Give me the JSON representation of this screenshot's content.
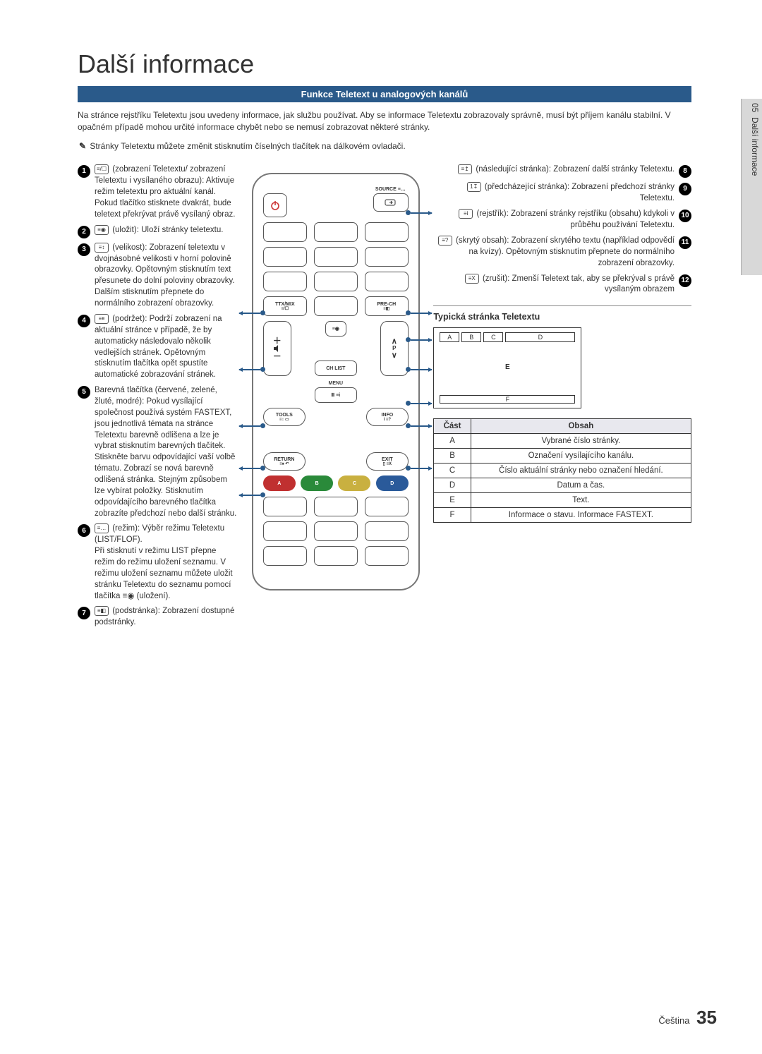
{
  "side_tab": {
    "chapter_num": "05",
    "chapter_title": "Další informace"
  },
  "page_title": "Další informace",
  "section_bar": "Funkce Teletext u analogových kanálů",
  "intro": "Na stránce rejstříku Teletextu jsou uvedeny informace, jak službu používat. Aby se informace Teletextu zobrazovaly správně, musí být příjem kanálu stabilní. V opačném případě mohou určité informace chybět nebo se nemusí zobrazovat některé stránky.",
  "note_icon": "✎",
  "note": "Stránky Teletextu můžete změnit stisknutím číselných tlačítek na dálkovém ovladači.",
  "left_items": [
    {
      "n": "1",
      "sym": "≡/☐",
      "text": "(zobrazení Teletextu/ zobrazení Teletextu i vysílaného obrazu): Aktivuje režim teletextu pro aktuální kanál. Pokud tlačítko stisknete dvakrát, bude teletext překrývat právě vysílaný obraz."
    },
    {
      "n": "2",
      "sym": "≡◉",
      "text": "(uložit): Uloží stránky teletextu."
    },
    {
      "n": "3",
      "sym": "≡↕",
      "text": "(velikost): Zobrazení teletextu v dvojnásobné velikosti v horní polovině obrazovky. Opětovným stisknutím text přesunete do dolní poloviny obrazovky. Dalším stisknutím přepnete do normálního zobrazení obrazovky."
    },
    {
      "n": "4",
      "sym": "≡⏸",
      "text": "(podržet): Podrží zobrazení na aktuální stránce v případě, že by automaticky následovalo několik vedlejších stránek. Opětovným stisknutím tlačítka opět spustíte automatické zobrazování stránek."
    },
    {
      "n": "5",
      "sym": "",
      "text": "Barevná tlačítka (červené, zelené, žluté, modré): Pokud vysílající společnost používá systém FASTEXT, jsou jednotlivá témata na stránce Teletextu barevně odlišena a lze je vybrat stisknutím barevných tlačítek. Stiskněte barvu odpovídající vaší volbě tématu. Zobrazí se nová barevně odlišená stránka. Stejným způsobem lze vybírat položky. Stisknutím odpovídajícího barevného tlačítka zobrazíte předchozí nebo další stránku."
    },
    {
      "n": "6",
      "sym": "≡…",
      "text": "(režim): Výběr režimu Teletextu (LIST/FLOF).\nPři stisknutí v režimu LIST přepne režim do režimu uložení seznamu. V režimu uložení seznamu můžete uložit stránku Teletextu do seznamu pomocí tlačítka ≡◉ (uložení)."
    },
    {
      "n": "7",
      "sym": "≡◧",
      "text": "(podstránka): Zobrazení dostupné podstránky."
    }
  ],
  "right_items": [
    {
      "n": "8",
      "sym": "≡↥",
      "text": "(následující stránka): Zobrazení další stránky Teletextu."
    },
    {
      "n": "9",
      "sym": "1↧",
      "text": "(předcházející stránka): Zobrazení předchozí stránky Teletextu."
    },
    {
      "n": "10",
      "sym": "≡i",
      "text": "(rejstřík): Zobrazení stránky rejstříku (obsahu) kdykoli v průběhu používání Teletextu."
    },
    {
      "n": "11",
      "sym": "≡?",
      "text": "(skrytý obsah): Zobrazení skrytého textu (například odpovědí na kvízy). Opětovným stisknutím přepnete do normálního zobrazení obrazovky."
    },
    {
      "n": "12",
      "sym": "≡X",
      "text": "(zrušit): Zmenší Teletext tak, aby se překrýval s právě vysílaným obrazem"
    }
  ],
  "remote": {
    "source": "SOURCE ≡…",
    "ttxmix": "TTX/MIX",
    "prech": "PRE-CH",
    "chlist": "CH LIST",
    "menu": "MENU",
    "tools": "TOOLS",
    "info": "INFO",
    "return": "RETURN",
    "exit": "EXIT",
    "p": "P",
    "colors": [
      "A",
      "B",
      "C",
      "D"
    ]
  },
  "ttx": {
    "title": "Typická stránka Teletextu",
    "labels": {
      "A": "A",
      "B": "B",
      "C": "C",
      "D": "D",
      "E": "E",
      "F": "F"
    },
    "table_head": {
      "part": "Část",
      "content": "Obsah"
    },
    "rows": [
      {
        "p": "A",
        "c": "Vybrané číslo stránky."
      },
      {
        "p": "B",
        "c": "Označení vysílajícího kanálu."
      },
      {
        "p": "C",
        "c": "Číslo aktuální stránky nebo označení hledání."
      },
      {
        "p": "D",
        "c": "Datum a čas."
      },
      {
        "p": "E",
        "c": "Text."
      },
      {
        "p": "F",
        "c": "Informace o stavu. Informace FASTEXT."
      }
    ]
  },
  "footer": {
    "lang": "Čeština",
    "page": "35"
  },
  "colors": {
    "accent": "#2a5a8a",
    "num_bg": "#000000",
    "table_head_bg": "#e8e8ee"
  }
}
